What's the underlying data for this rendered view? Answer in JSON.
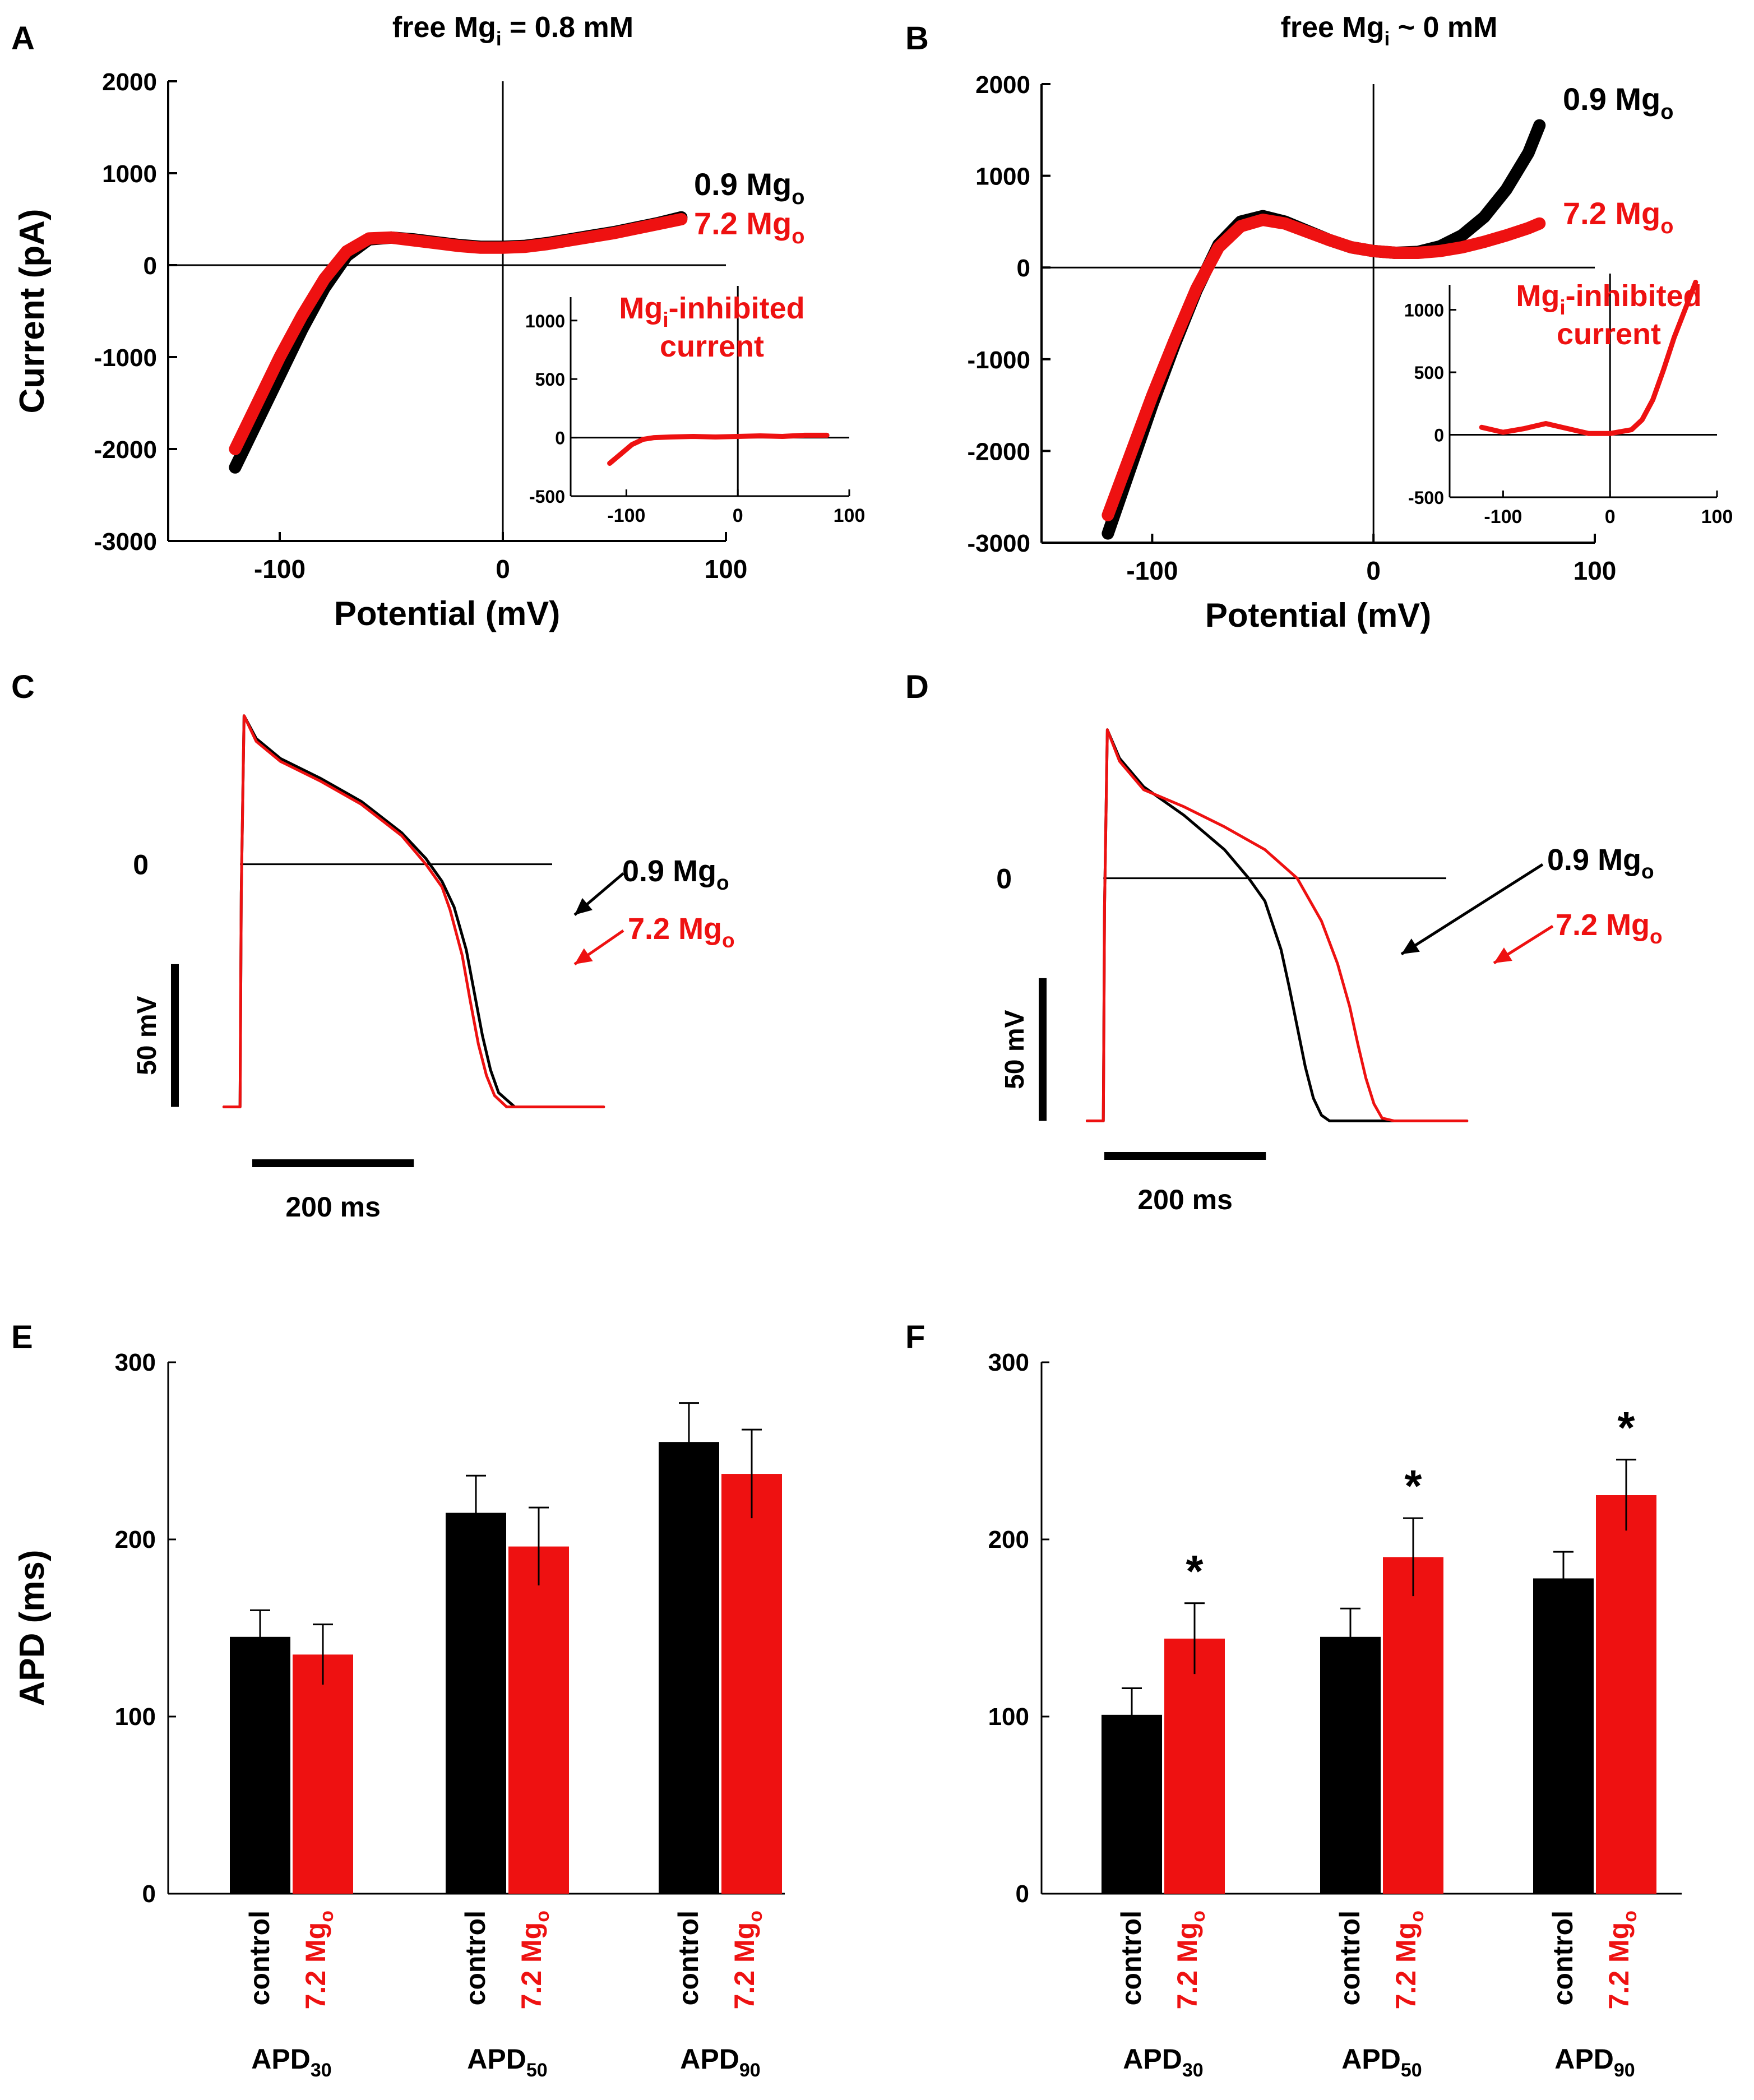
{
  "colors": {
    "control": "#000000",
    "treatment": "#ee1111"
  },
  "panels": {
    "A": {
      "letter": "A",
      "title_main": "free Mg",
      "title_sub": "i",
      "title_rest": " = 0.8 mM"
    },
    "B": {
      "letter": "B",
      "title_main": "free Mg",
      "title_sub": "i",
      "title_rest": " ~ 0 mM"
    },
    "C": {
      "letter": "C"
    },
    "D": {
      "letter": "D"
    },
    "E": {
      "letter": "E"
    },
    "F": {
      "letter": "F"
    }
  },
  "labels": {
    "current_axis": "Current (pA)",
    "potential_axis": "Potential (mV)",
    "apd_axis": "APD (ms)",
    "zero": "0",
    "scale_mv": "50 mV",
    "scale_ms": "200 ms",
    "series_control_main": "0.9 Mg",
    "series_treat_main": "7.2 Mg",
    "series_sub": "o",
    "inset_line1_main": "Mg",
    "inset_line1_sub": "i",
    "inset_line1_rest": "-inhibited",
    "inset_line2": "current",
    "bar_control": "control",
    "bar_treat_main": "7.2 Mg",
    "bar_treat_sub": "o",
    "apd_main": "APD",
    "star": "*"
  },
  "chart_data": [
    {
      "panel": "A",
      "type": "line",
      "xlabel": "Potential (mV)",
      "ylabel": "Current (pA)",
      "xlim": [
        -150,
        100
      ],
      "ylim": [
        -3000,
        2000
      ],
      "xticks": [
        -100,
        0,
        100
      ],
      "yticks": [
        -3000,
        -2000,
        -1000,
        0,
        1000,
        2000
      ],
      "series": [
        {
          "name": "0.9 Mgo",
          "color": "#000000",
          "x": [
            -120,
            -110,
            -100,
            -90,
            -80,
            -70,
            -60,
            -50,
            -40,
            -30,
            -20,
            -10,
            0,
            10,
            20,
            30,
            40,
            50,
            60,
            70,
            80
          ],
          "y": [
            -2200,
            -1700,
            -1200,
            -700,
            -250,
            100,
            280,
            300,
            280,
            250,
            220,
            200,
            200,
            210,
            240,
            280,
            320,
            360,
            410,
            460,
            520
          ]
        },
        {
          "name": "7.2 Mgo",
          "color": "#ee1111",
          "x": [
            -120,
            -110,
            -100,
            -90,
            -80,
            -70,
            -60,
            -50,
            -40,
            -30,
            -20,
            -10,
            0,
            10,
            20,
            30,
            40,
            50,
            60,
            70,
            80
          ],
          "y": [
            -2000,
            -1500,
            -1000,
            -550,
            -150,
            150,
            290,
            300,
            270,
            240,
            210,
            190,
            190,
            200,
            230,
            270,
            310,
            350,
            400,
            450,
            500
          ]
        }
      ],
      "inset": {
        "title": "Mgi-inhibited current",
        "xlim": [
          -150,
          100
        ],
        "ylim": [
          -500,
          1200
        ],
        "xticks": [
          -100,
          0,
          100
        ],
        "yticks": [
          -500,
          0,
          500,
          1000
        ],
        "series": [
          {
            "name": "Mgi-inhibited current",
            "color": "#ee1111",
            "x": [
              -115,
              -105,
              -95,
              -85,
              -75,
              -60,
              -40,
              -20,
              0,
              20,
              40,
              60,
              80
            ],
            "y": [
              -220,
              -140,
              -60,
              -15,
              0,
              5,
              10,
              5,
              10,
              15,
              10,
              20,
              20
            ]
          }
        ]
      }
    },
    {
      "panel": "B",
      "type": "line",
      "xlabel": "Potential (mV)",
      "ylabel": "",
      "xlim": [
        -150,
        100
      ],
      "ylim": [
        -3000,
        2000
      ],
      "xticks": [
        -100,
        0,
        100
      ],
      "yticks": [
        -3000,
        -2000,
        -1000,
        0,
        1000,
        2000
      ],
      "series": [
        {
          "name": "0.9 Mgo",
          "color": "#000000",
          "x": [
            -120,
            -110,
            -100,
            -90,
            -80,
            -70,
            -60,
            -50,
            -40,
            -30,
            -20,
            -10,
            0,
            10,
            20,
            30,
            40,
            50,
            60,
            70,
            75
          ],
          "y": [
            -2900,
            -2200,
            -1500,
            -850,
            -250,
            250,
            500,
            560,
            500,
            400,
            300,
            220,
            180,
            160,
            170,
            230,
            350,
            550,
            850,
            1250,
            1550
          ]
        },
        {
          "name": "7.2 Mgo",
          "color": "#ee1111",
          "x": [
            -120,
            -110,
            -100,
            -90,
            -80,
            -70,
            -60,
            -50,
            -40,
            -30,
            -20,
            -10,
            0,
            10,
            20,
            30,
            40,
            50,
            60,
            70,
            75
          ],
          "y": [
            -2700,
            -2050,
            -1400,
            -800,
            -230,
            220,
            450,
            520,
            480,
            390,
            300,
            220,
            180,
            160,
            160,
            180,
            220,
            280,
            350,
            430,
            480
          ]
        }
      ],
      "inset": {
        "title": "Mgi-inhibited current",
        "xlim": [
          -150,
          100
        ],
        "ylim": [
          -500,
          1200
        ],
        "xticks": [
          -100,
          0,
          100
        ],
        "yticks": [
          -500,
          0,
          500,
          1000
        ],
        "series": [
          {
            "name": "Mgi-inhibited current",
            "color": "#ee1111",
            "x": [
              -120,
              -100,
              -80,
              -60,
              -40,
              -20,
              0,
              20,
              30,
              40,
              50,
              60,
              70,
              80
            ],
            "y": [
              60,
              20,
              50,
              90,
              50,
              10,
              10,
              40,
              120,
              280,
              520,
              780,
              1000,
              1220
            ]
          }
        ]
      }
    },
    {
      "panel": "C",
      "type": "line",
      "xlabel": "",
      "ylabel": "",
      "xlim": [
        -30,
        650
      ],
      "ylim": [
        -90,
        70
      ],
      "scalebars": {
        "voltage_mV": 50,
        "time_ms": 200
      },
      "zero_line": 0,
      "series": [
        {
          "name": "0.9 Mgo",
          "color": "#000000",
          "x": [
            -20,
            0,
            0.5,
            1.5,
            5,
            20,
            50,
            100,
            150,
            200,
            230,
            250,
            265,
            280,
            290,
            300,
            310,
            320,
            340,
            360,
            400,
            450
          ],
          "y": [
            -85,
            -85,
            -60,
            -10,
            52,
            44,
            37,
            30,
            22,
            11,
            2,
            -6,
            -15,
            -30,
            -45,
            -60,
            -72,
            -80,
            -85,
            -85,
            -85,
            -85
          ]
        },
        {
          "name": "7.2 Mgo",
          "color": "#ee1111",
          "x": [
            -20,
            0,
            0.5,
            1.5,
            5,
            20,
            50,
            100,
            150,
            200,
            230,
            250,
            260,
            275,
            285,
            295,
            305,
            315,
            330,
            360,
            400,
            450
          ],
          "y": [
            -85,
            -85,
            -60,
            -10,
            52,
            43,
            36,
            29,
            21,
            10,
            0,
            -8,
            -16,
            -32,
            -48,
            -63,
            -74,
            -81,
            -85,
            -85,
            -85,
            -85
          ]
        }
      ]
    },
    {
      "panel": "D",
      "type": "line",
      "xlabel": "",
      "ylabel": "",
      "xlim": [
        -30,
        650
      ],
      "ylim": [
        -90,
        70
      ],
      "scalebars": {
        "voltage_mV": 50,
        "time_ms": 200
      },
      "zero_line": 0,
      "series": [
        {
          "name": "0.9 Mgo",
          "color": "#000000",
          "x": [
            -20,
            0,
            0.5,
            1.5,
            5,
            20,
            50,
            100,
            150,
            180,
            200,
            220,
            230,
            240,
            250,
            260,
            270,
            280,
            300,
            340,
            400,
            450
          ],
          "y": [
            -85,
            -85,
            -60,
            -10,
            52,
            42,
            32,
            22,
            10,
            0,
            -8,
            -25,
            -38,
            -52,
            -66,
            -77,
            -83,
            -85,
            -85,
            -85,
            -85,
            -85
          ]
        },
        {
          "name": "7.2 Mgo",
          "color": "#ee1111",
          "x": [
            -20,
            0,
            0.5,
            1.5,
            5,
            20,
            50,
            100,
            150,
            200,
            240,
            270,
            290,
            305,
            315,
            325,
            335,
            345,
            360,
            400,
            450
          ],
          "y": [
            -85,
            -85,
            -60,
            -10,
            52,
            41,
            31,
            25,
            18,
            10,
            0,
            -15,
            -30,
            -45,
            -58,
            -70,
            -79,
            -84,
            -85,
            -85,
            -85
          ]
        }
      ]
    },
    {
      "panel": "E",
      "type": "bar",
      "ylabel": "APD (ms)",
      "ylim": [
        0,
        300
      ],
      "yticks": [
        0,
        100,
        200,
        300
      ],
      "categories": [
        "APD30",
        "APD50",
        "APD90"
      ],
      "category_subscripts": [
        "30",
        "50",
        "90"
      ],
      "series": [
        {
          "name": "control",
          "color": "#000000",
          "values": [
            145,
            215,
            255
          ],
          "errors": [
            15,
            21,
            22
          ]
        },
        {
          "name": "7.2 Mgo",
          "color": "#ee1111",
          "values": [
            135,
            196,
            237
          ],
          "errors": [
            17,
            22,
            25
          ]
        }
      ],
      "significance": [
        false,
        false,
        false
      ]
    },
    {
      "panel": "F",
      "type": "bar",
      "ylabel": "",
      "ylim": [
        0,
        300
      ],
      "yticks": [
        0,
        100,
        200,
        300
      ],
      "categories": [
        "APD30",
        "APD50",
        "APD90"
      ],
      "category_subscripts": [
        "30",
        "50",
        "90"
      ],
      "series": [
        {
          "name": "control",
          "color": "#000000",
          "values": [
            101,
            145,
            178
          ],
          "errors": [
            15,
            16,
            15
          ]
        },
        {
          "name": "7.2 Mgo",
          "color": "#ee1111",
          "values": [
            144,
            190,
            225
          ],
          "errors": [
            20,
            22,
            20
          ]
        }
      ],
      "significance": [
        true,
        true,
        true
      ]
    }
  ]
}
